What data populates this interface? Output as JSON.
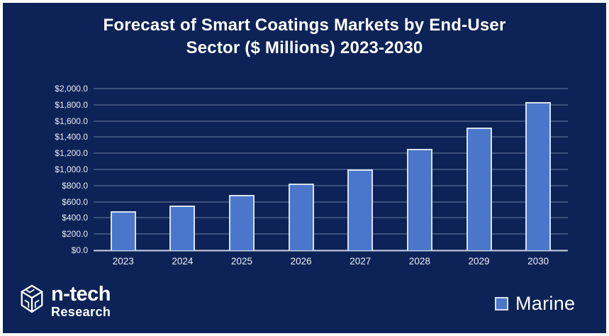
{
  "title": {
    "line1": "Forecast of Smart Coatings Markets by End-User",
    "line2": "Sector ($ Millions) 2023-2030"
  },
  "chart_data": {
    "type": "bar",
    "title": "Forecast of Smart Coatings Markets by End-User Sector ($ Millions) 2023-2030",
    "categories": [
      "2023",
      "2024",
      "2025",
      "2026",
      "2027",
      "2028",
      "2029",
      "2030"
    ],
    "series": [
      {
        "name": "Marine",
        "values": [
          480,
          550,
          685,
          825,
          1000,
          1255,
          1515,
          1835
        ]
      }
    ],
    "xlabel": "",
    "ylabel": "",
    "ylim": [
      0,
      2000
    ],
    "y_tick_step": 200,
    "y_ticks": [
      "$2,000.0",
      "$1,800.0",
      "$1,600.0",
      "$1,400.0",
      "$1,200.0",
      "$1,000.0",
      "$800.0",
      "$600.0",
      "$400.0",
      "$200.0",
      "$0.0"
    ],
    "grid": true,
    "legend_position": "bottom-right"
  },
  "legend": {
    "swatch": "marine-series-swatch",
    "label": "Marine"
  },
  "logo": {
    "icon": "cube-icon",
    "name": "n-tech",
    "subtitle": "Research"
  },
  "colors": {
    "background": "#0d2357",
    "bar_fill": "#4a77cb",
    "bar_border": "#d9e2f2",
    "gridline": "#8d9cb9",
    "axis_line": "#c9d3e4",
    "text": "#ffffff"
  }
}
